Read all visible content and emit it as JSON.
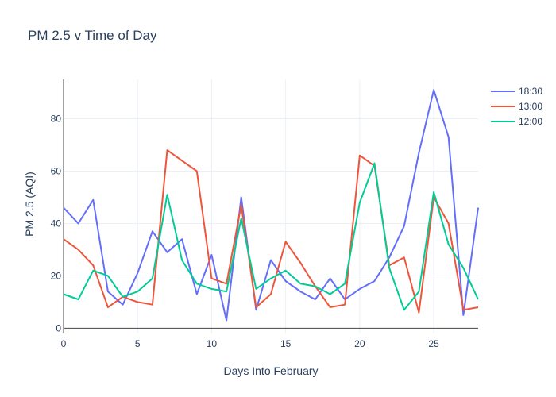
{
  "chart_data": {
    "type": "line",
    "title": "PM 2.5 v Time of Day",
    "xlabel": "Days Into February",
    "ylabel": "PM 2.5 (AQI)",
    "xlim": [
      0,
      28
    ],
    "ylim": [
      -2,
      95
    ],
    "xticks": [
      0,
      5,
      10,
      15,
      20,
      25
    ],
    "yticks": [
      0,
      20,
      40,
      60,
      80
    ],
    "grid": true,
    "legend": "top-right",
    "x": [
      0,
      1,
      2,
      3,
      4,
      5,
      6,
      7,
      8,
      9,
      10,
      11,
      12,
      13,
      14,
      15,
      16,
      17,
      18,
      19,
      20,
      21,
      22,
      23,
      24,
      25,
      26,
      27,
      28
    ],
    "series": [
      {
        "name": "18:30",
        "color": "#636efa",
        "values": [
          46,
          40,
          49,
          14,
          9,
          21,
          37,
          29,
          34,
          13,
          28,
          3,
          50,
          7,
          26,
          18,
          14,
          11,
          19,
          11,
          15,
          18,
          27,
          39,
          67,
          91,
          73,
          5,
          46
        ]
      },
      {
        "name": "13:00",
        "color": "#ef553b",
        "values": [
          34,
          30,
          24,
          8,
          12,
          10,
          9,
          68,
          64,
          60,
          19,
          17,
          47,
          8,
          13,
          33,
          25,
          16,
          8,
          9,
          66,
          62,
          24,
          27,
          6,
          50,
          40,
          7,
          8
        ]
      },
      {
        "name": "12:00",
        "color": "#00cc96",
        "values": [
          13,
          11,
          22,
          20,
          12,
          14,
          19,
          51,
          26,
          17,
          15,
          14,
          42,
          15,
          19,
          22,
          17,
          16,
          13,
          17,
          48,
          63,
          23,
          7,
          14,
          52,
          32,
          23,
          11
        ]
      }
    ]
  }
}
